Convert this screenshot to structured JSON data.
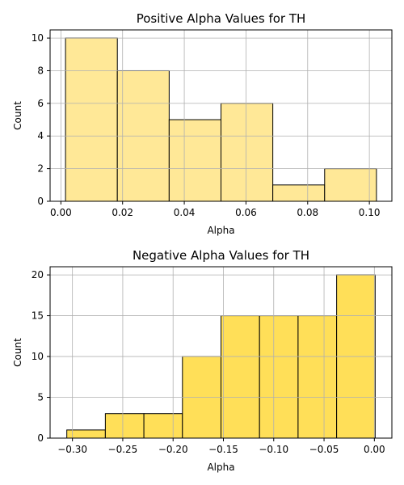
{
  "chart_data": [
    {
      "type": "bar",
      "title": "Positive Alpha Values for TH",
      "xlabel": "Alpha",
      "ylabel": "Count",
      "bin_edges": [
        0.0015,
        0.0183,
        0.0351,
        0.0519,
        0.0687,
        0.0855,
        0.1023
      ],
      "values": [
        10,
        8,
        5,
        6,
        1,
        2
      ],
      "xlim": [
        -0.0035,
        0.1073
      ],
      "ylim": [
        0,
        10.5
      ],
      "xticks": [
        0.0,
        0.02,
        0.04,
        0.06,
        0.08,
        0.1
      ],
      "xtick_labels": [
        "0.00",
        "0.02",
        "0.04",
        "0.06",
        "0.08",
        "0.10"
      ],
      "yticks": [
        0,
        2,
        4,
        6,
        8,
        10
      ],
      "ytick_labels": [
        "0",
        "2",
        "4",
        "6",
        "8",
        "10"
      ],
      "color": "#ffe897",
      "grid": true
    },
    {
      "type": "bar",
      "title": "Negative Alpha Values for TH",
      "xlabel": "Alpha",
      "ylabel": "Count",
      "bin_edges": [
        -0.3056,
        -0.2673,
        -0.229,
        -0.1907,
        -0.1524,
        -0.1141,
        -0.0758,
        -0.0375,
        0.0008
      ],
      "values": [
        1,
        3,
        3,
        10,
        15,
        15,
        15,
        20
      ],
      "xlim": [
        -0.3222,
        0.0174
      ],
      "ylim": [
        0,
        21
      ],
      "xticks": [
        -0.3,
        -0.25,
        -0.2,
        -0.15,
        -0.1,
        -0.05,
        0.0
      ],
      "xtick_labels": [
        "−0.30",
        "−0.25",
        "−0.20",
        "−0.15",
        "−0.10",
        "−0.05",
        "0.00"
      ],
      "yticks": [
        0,
        5,
        10,
        15,
        20
      ],
      "ytick_labels": [
        "0",
        "5",
        "10",
        "15",
        "20"
      ],
      "color": "#ffdf58",
      "grid": true
    }
  ]
}
